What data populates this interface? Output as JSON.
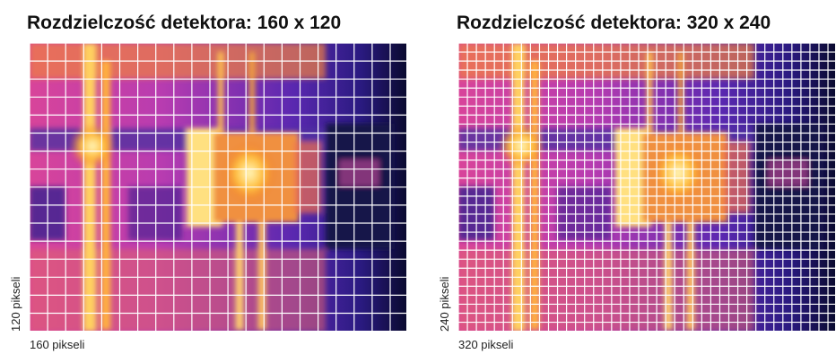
{
  "panels": [
    {
      "title": "Rozdzielczość detektora: 160 x 120",
      "x_label": "160 pikseli",
      "y_label": "120 pikseli"
    },
    {
      "title": "Rozdzielczość detektora: 320 x 240",
      "x_label": "320 pikseli",
      "y_label": "240 pikseli"
    }
  ]
}
